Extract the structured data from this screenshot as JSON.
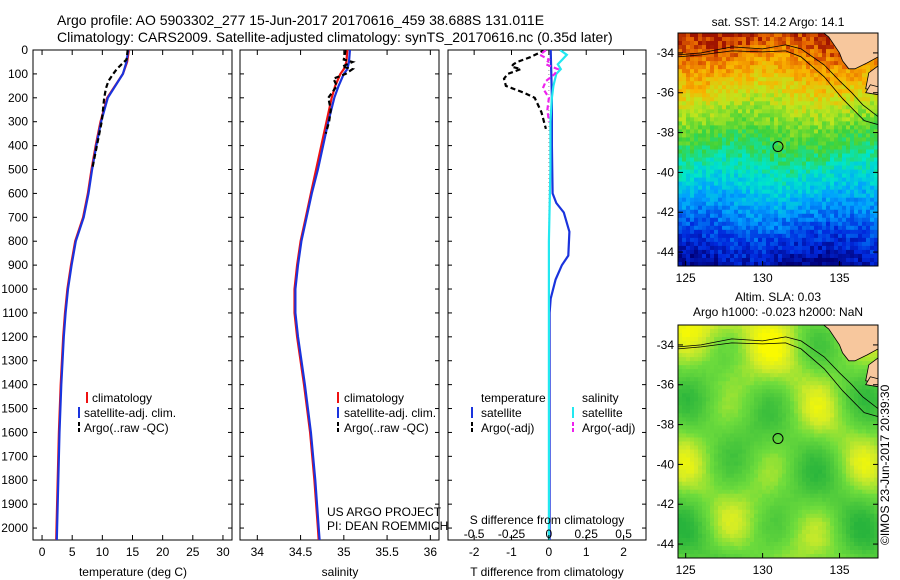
{
  "header": {
    "line1": "Argo profile: AO 5903302_277 15-Jun-2017 20170616_459 38.688S 131.011E",
    "line2": "Climatology: CARS2009. Satellite-adjusted climatology: synTS_20170616.nc (0.35d later)"
  },
  "credits": {
    "project": "US ARGO PROJECT",
    "pi": "PI: DEAN ROEMMICH",
    "imos": "©IMOS 23-Jun-2017 20:39:30"
  },
  "colors": {
    "red": "#ee1111",
    "blue": "#1a33dd",
    "black": "#000000",
    "cyan": "#22e8f0",
    "magenta": "#ee22ee"
  },
  "depth_axis": {
    "range": [
      0,
      2050
    ],
    "ticks": [
      0,
      100,
      200,
      300,
      400,
      500,
      600,
      700,
      800,
      900,
      1000,
      1100,
      1200,
      1300,
      1400,
      1500,
      1600,
      1700,
      1800,
      1900,
      2000
    ]
  },
  "chart_data": [
    {
      "type": "line",
      "name": "temperature",
      "xlabel": "temperature (deg C)",
      "xlim": [
        -1.5,
        31.5
      ],
      "xticks": [
        0,
        5,
        10,
        15,
        20,
        25,
        30
      ],
      "legend": [
        "climatology",
        "satellite-adj. clim.",
        "Argo(..raw -QC)"
      ],
      "series": [
        {
          "name": "climatology",
          "color": "red",
          "depth": [
            0,
            50,
            100,
            200,
            300,
            400,
            500,
            600,
            700,
            800,
            900,
            1000,
            1100,
            1200,
            1400,
            1600,
            1800,
            2000,
            2050
          ],
          "values": [
            14.4,
            14.1,
            13.4,
            10.8,
            9.7,
            8.9,
            8.2,
            7.6,
            6.8,
            5.5,
            4.8,
            4.2,
            3.8,
            3.5,
            3.1,
            2.8,
            2.6,
            2.4,
            2.35
          ]
        },
        {
          "name": "satellite-adj. clim.",
          "color": "blue",
          "depth": [
            0,
            50,
            100,
            200,
            300,
            400,
            500,
            600,
            700,
            800,
            900,
            1000,
            1100,
            1200,
            1400,
            1600,
            1800,
            2000,
            2050
          ],
          "values": [
            14.3,
            14.0,
            13.4,
            10.9,
            9.8,
            9.0,
            8.3,
            7.7,
            6.9,
            5.6,
            4.9,
            4.3,
            3.9,
            3.6,
            3.2,
            2.9,
            2.7,
            2.5,
            2.45
          ]
        },
        {
          "name": "Argo",
          "color": "black",
          "dashed": true,
          "depth": [
            0,
            40,
            60,
            80,
            100,
            130,
            160,
            200,
            250,
            300,
            400,
            500
          ],
          "values": [
            14.2,
            14.0,
            13.2,
            12.4,
            11.8,
            11.0,
            10.6,
            10.3,
            10.1,
            9.9,
            9.1,
            8.3
          ]
        }
      ]
    },
    {
      "type": "line",
      "name": "salinity",
      "xlabel": "salinity",
      "xlim": [
        33.8,
        36.1
      ],
      "xticks": [
        34,
        34.5,
        35,
        35.5,
        36
      ],
      "legend": [
        "climatology",
        "satellite-adj. clim.",
        "Argo(..raw -QC)"
      ],
      "series": [
        {
          "name": "climatology",
          "color": "red",
          "depth": [
            0,
            50,
            80,
            100,
            150,
            200,
            300,
            400,
            500,
            600,
            700,
            800,
            900,
            1000,
            1100,
            1200,
            1400,
            1600,
            1800,
            2000,
            2050
          ],
          "values": [
            35.04,
            35.03,
            35.0,
            34.96,
            34.9,
            34.86,
            34.8,
            34.74,
            34.68,
            34.62,
            34.56,
            34.5,
            34.46,
            34.43,
            34.43,
            34.46,
            34.54,
            34.61,
            34.66,
            34.7,
            34.71
          ]
        },
        {
          "name": "satellite-adj. clim.",
          "color": "blue",
          "depth": [
            0,
            50,
            80,
            100,
            150,
            200,
            300,
            400,
            500,
            600,
            700,
            800,
            900,
            1000,
            1100,
            1200,
            1400,
            1600,
            1800,
            2000,
            2050
          ],
          "values": [
            35.07,
            35.06,
            35.04,
            35.0,
            34.94,
            34.89,
            34.82,
            34.76,
            34.7,
            34.63,
            34.57,
            34.51,
            34.47,
            34.44,
            34.44,
            34.47,
            34.55,
            34.62,
            34.67,
            34.71,
            34.72
          ]
        },
        {
          "name": "Argo",
          "color": "black",
          "dashed": true,
          "depth": [
            0,
            40,
            50,
            60,
            70,
            80,
            100,
            120,
            150,
            200,
            250,
            300,
            350
          ],
          "values": [
            35.02,
            35.0,
            35.1,
            35.04,
            34.98,
            35.1,
            35.02,
            34.88,
            34.92,
            34.82,
            34.85,
            34.83,
            34.79
          ]
        }
      ]
    },
    {
      "type": "line",
      "name": "difference",
      "xlabel": "T difference from climatology",
      "x2label": "S difference from climatology",
      "xlim": [
        -2.7,
        2.6
      ],
      "xticks": [
        -2,
        -1,
        0,
        1,
        2
      ],
      "x2ticks": [
        "-0.5",
        "-0.25",
        "0",
        "0.25",
        "0.5"
      ],
      "legend_temperature": {
        "title": "temperature",
        "items": [
          "satellite",
          "Argo(-adj)"
        ]
      },
      "legend_salinity": {
        "title": "salinity",
        "items": [
          "satellite",
          "Argo(-adj)"
        ]
      },
      "series": [
        {
          "name": "T satellite",
          "color": "blue",
          "depth": [
            0,
            200,
            400,
            600,
            640,
            680,
            760,
            860,
            900,
            960,
            1040,
            1100,
            1200,
            1600,
            2050
          ],
          "values": [
            0.05,
            0.08,
            0.08,
            0.1,
            0.2,
            0.4,
            0.55,
            0.52,
            0.35,
            0.18,
            0.05,
            0.02,
            0.02,
            0.02,
            0.02
          ]
        },
        {
          "name": "T Argo(-adj)",
          "color": "black",
          "dashed": true,
          "depth": [
            0,
            30,
            50,
            60,
            70,
            80,
            100,
            120,
            150,
            180,
            200,
            260,
            330
          ],
          "values": [
            -0.1,
            -0.5,
            -0.85,
            -0.95,
            -1.0,
            -0.75,
            -1.1,
            -1.2,
            -1.15,
            -0.65,
            -0.38,
            -0.2,
            -0.08
          ]
        },
        {
          "name": "S satellite",
          "color": "cyan",
          "depth": [
            0,
            20,
            40,
            60,
            80,
            100,
            150,
            200,
            300,
            500,
            800,
            1200,
            1600,
            2050
          ],
          "values": [
            0.075,
            0.12,
            0.09,
            0.06,
            0.08,
            0.05,
            0.03,
            0.02,
            0.01,
            0.01,
            0.0,
            0.0,
            0.0,
            0.0
          ]
        },
        {
          "name": "S Argo(-adj)",
          "color": "magenta",
          "dashed": true,
          "depth": [
            0,
            20,
            40,
            60,
            80,
            100,
            130,
            160,
            200,
            250,
            300
          ],
          "values": [
            -0.02,
            -0.06,
            0.0,
            -0.02,
            0.06,
            0.04,
            -0.02,
            -0.04,
            0.0,
            -0.01,
            0.0
          ]
        }
      ]
    },
    {
      "type": "heatmap",
      "name": "SST map",
      "title": "sat. SST: 14.2 Argo: 14.1",
      "xlim": [
        124.5,
        137.5
      ],
      "ylim": [
        -44.7,
        -33
      ],
      "xticks": [
        125,
        130,
        135
      ],
      "yticks": [
        -34,
        -36,
        -38,
        -40,
        -42,
        -44
      ],
      "marker": {
        "lon": 131.0,
        "lat": -38.7
      }
    },
    {
      "type": "heatmap",
      "name": "SLA map",
      "title": "Altim. SLA: 0.03",
      "subtitle": "Argo h1000: -0.023 h2000: NaN",
      "xlim": [
        124.5,
        137.5
      ],
      "ylim": [
        -44.7,
        -33
      ],
      "xticks": [
        125,
        130,
        135
      ],
      "yticks": [
        -34,
        -36,
        -38,
        -40,
        -42,
        -44
      ],
      "marker": {
        "lon": 131.0,
        "lat": -38.7
      }
    }
  ]
}
